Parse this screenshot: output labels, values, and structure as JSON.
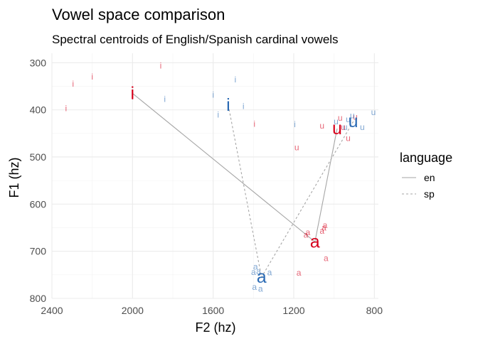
{
  "chart_data": {
    "type": "scatter",
    "title": "Vowel space comparison",
    "subtitle": "Spectral centroids of English/Spanish cardinal vowels",
    "xlabel": "F2 (hz)",
    "ylabel": "F1 (hz)",
    "x_reversed": true,
    "y_reversed": true,
    "xlim": [
      2400,
      780
    ],
    "ylim": [
      280,
      800
    ],
    "x_ticks": [
      2400,
      2000,
      1600,
      1200,
      800
    ],
    "y_ticks": [
      300,
      400,
      500,
      600,
      700,
      800
    ],
    "grid": true,
    "legend": {
      "title": "language",
      "position": "right",
      "entries": [
        {
          "label": "en",
          "linetype": "solid"
        },
        {
          "label": "sp",
          "linetype": "dashed"
        }
      ]
    },
    "colors": {
      "en": "#d6001c",
      "sp": "#2a6ab4",
      "line": "#a6a6a6"
    },
    "series": [
      {
        "name": "en",
        "centroids": [
          {
            "vowel": "i",
            "f2": 2000,
            "f1": 365
          },
          {
            "vowel": "a",
            "f2": 1095,
            "f1": 680
          },
          {
            "vowel": "u",
            "f2": 985,
            "f1": 440
          }
        ],
        "tokens": [
          {
            "vowel": "i",
            "f2": 2200,
            "f1": 330
          },
          {
            "vowel": "i",
            "f2": 2295,
            "f1": 345
          },
          {
            "vowel": "i",
            "f2": 2330,
            "f1": 397
          },
          {
            "vowel": "i",
            "f2": 1860,
            "f1": 306
          },
          {
            "vowel": "i",
            "f2": 2000,
            "f1": 372
          },
          {
            "vowel": "i",
            "f2": 1395,
            "f1": 430
          },
          {
            "vowel": "a",
            "f2": 1050,
            "f1": 650
          },
          {
            "vowel": "a",
            "f2": 1130,
            "f1": 660
          },
          {
            "vowel": "a",
            "f2": 1140,
            "f1": 665
          },
          {
            "vowel": "a",
            "f2": 1060,
            "f1": 657
          },
          {
            "vowel": "a",
            "f2": 1045,
            "f1": 645
          },
          {
            "vowel": "a",
            "f2": 1040,
            "f1": 715
          },
          {
            "vowel": "a",
            "f2": 1175,
            "f1": 746
          },
          {
            "vowel": "u",
            "f2": 970,
            "f1": 417
          },
          {
            "vowel": "u",
            "f2": 1060,
            "f1": 434
          },
          {
            "vowel": "u",
            "f2": 1185,
            "f1": 480
          },
          {
            "vowel": "u",
            "f2": 930,
            "f1": 460
          },
          {
            "vowel": "u",
            "f2": 895,
            "f1": 415
          },
          {
            "vowel": "u",
            "f2": 955,
            "f1": 437
          }
        ]
      },
      {
        "name": "sp",
        "centroids": [
          {
            "vowel": "i",
            "f2": 1525,
            "f1": 390
          },
          {
            "vowel": "a",
            "f2": 1360,
            "f1": 755
          },
          {
            "vowel": "u",
            "f2": 905,
            "f1": 425
          }
        ],
        "tokens": [
          {
            "vowel": "i",
            "f2": 1490,
            "f1": 336
          },
          {
            "vowel": "i",
            "f2": 1600,
            "f1": 368
          },
          {
            "vowel": "i",
            "f2": 1575,
            "f1": 410
          },
          {
            "vowel": "i",
            "f2": 1840,
            "f1": 377
          },
          {
            "vowel": "i",
            "f2": 1450,
            "f1": 392
          },
          {
            "vowel": "i",
            "f2": 1195,
            "f1": 431
          },
          {
            "vowel": "a",
            "f2": 1375,
            "f1": 743
          },
          {
            "vowel": "a",
            "f2": 1400,
            "f1": 744
          },
          {
            "vowel": "a",
            "f2": 1390,
            "f1": 733
          },
          {
            "vowel": "a",
            "f2": 1320,
            "f1": 745
          },
          {
            "vowel": "a",
            "f2": 1395,
            "f1": 776
          },
          {
            "vowel": "a",
            "f2": 1365,
            "f1": 780
          },
          {
            "vowel": "u",
            "f2": 930,
            "f1": 420
          },
          {
            "vowel": "u",
            "f2": 990,
            "f1": 425
          },
          {
            "vowel": "u",
            "f2": 910,
            "f1": 412
          },
          {
            "vowel": "u",
            "f2": 945,
            "f1": 437
          },
          {
            "vowel": "u",
            "f2": 860,
            "f1": 437
          },
          {
            "vowel": "u",
            "f2": 805,
            "f1": 405
          }
        ]
      }
    ]
  }
}
